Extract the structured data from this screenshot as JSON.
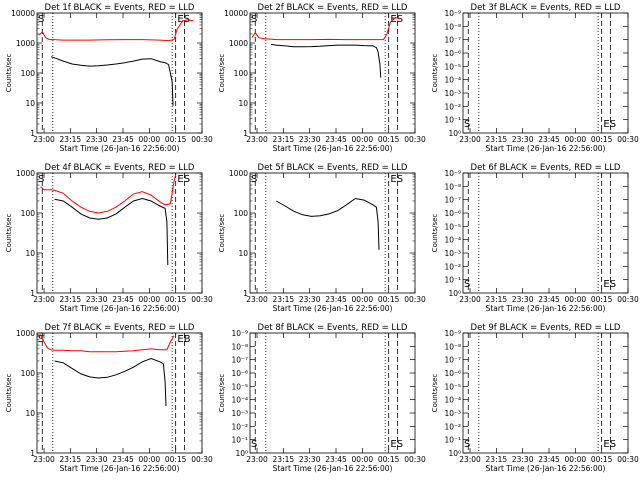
{
  "chart_data": [
    {
      "type": "line",
      "title": "Det 1f BLACK = Events, RED = LLD",
      "xlabel": "Start Time (26-Jan-16 22:56:00)",
      "ylabel": "Counts/sec",
      "xticks": [
        "23:00",
        "23:15",
        "23:30",
        "23:45",
        "00:00",
        "00:15",
        "00:30"
      ],
      "yscale": "log",
      "yticks": [
        "1",
        "10",
        "100",
        "1000",
        "10000"
      ],
      "ylim": [
        1,
        10000
      ],
      "markers": [
        "S",
        "ES"
      ],
      "series": [
        {
          "color": "#ff0000",
          "role": "LLD",
          "x": [
            1,
            3,
            5,
            7,
            10,
            15,
            20,
            30,
            40,
            50,
            60,
            70,
            75,
            78,
            80,
            83,
            86,
            89
          ],
          "y": [
            1800,
            2300,
            1500,
            1300,
            1300,
            1250,
            1250,
            1250,
            1280,
            1300,
            1300,
            1250,
            1200,
            1300,
            3000,
            5500,
            6000,
            5500
          ]
        },
        {
          "color": "#000000",
          "role": "Events",
          "x": [
            8,
            10,
            15,
            20,
            25,
            30,
            35,
            40,
            45,
            50,
            55,
            60,
            65,
            70,
            73,
            75,
            77,
            77.5
          ],
          "y": [
            350,
            320,
            250,
            200,
            180,
            170,
            175,
            185,
            200,
            220,
            250,
            290,
            300,
            240,
            220,
            190,
            50,
            8
          ]
        }
      ]
    },
    {
      "type": "line",
      "title": "Det 2f BLACK = Events, RED = LLD",
      "xlabel": "Start Time (26-Jan-16 22:56:00)",
      "ylabel": "Counts/sec",
      "xticks": [
        "23:00",
        "23:15",
        "23:30",
        "23:45",
        "00:00",
        "00:15",
        "00:30"
      ],
      "yscale": "log",
      "yticks": [
        "1",
        "10",
        "100",
        "1000",
        "10000"
      ],
      "ylim": [
        1,
        10000
      ],
      "markers": [
        "S",
        "ES"
      ],
      "series": [
        {
          "color": "#ff0000",
          "role": "LLD",
          "x": [
            1,
            3,
            5,
            8,
            15,
            25,
            35,
            45,
            55,
            65,
            72,
            76,
            78,
            80,
            83,
            85
          ],
          "y": [
            1500,
            2200,
            1500,
            1400,
            1300,
            1300,
            1300,
            1320,
            1300,
            1300,
            1300,
            1300,
            2000,
            5000,
            7000,
            6500
          ]
        },
        {
          "color": "#000000",
          "role": "Events",
          "x": [
            12,
            15,
            20,
            25,
            30,
            35,
            40,
            45,
            50,
            55,
            60,
            65,
            70,
            72,
            73,
            74,
            74.5
          ],
          "y": [
            900,
            850,
            800,
            750,
            750,
            760,
            780,
            820,
            850,
            850,
            850,
            820,
            800,
            700,
            500,
            200,
            70
          ]
        }
      ]
    },
    {
      "type": "line",
      "title": "Det 3f BLACK = Events, RED = LLD",
      "xlabel": "Start Time (26-Jan-16 22:56:00)",
      "ylabel": "Counts/sec",
      "xticks": [
        "23:00",
        "23:15",
        "23:30",
        "23:45",
        "00:00",
        "00:15",
        "00:30"
      ],
      "yscale": "log",
      "yticks": [
        "10⁰",
        "10⁻¹",
        "10⁻²",
        "10⁻³",
        "10⁻⁴",
        "10⁻⁵",
        "10⁻⁶",
        "10⁻⁷",
        "10⁻⁸",
        "10⁻⁹"
      ],
      "markers": [
        "S",
        "ES"
      ],
      "series": []
    },
    {
      "type": "line",
      "title": "Det 4f BLACK = Events, RED = LLD",
      "xlabel": "Start Time (26-Jan-16 22:56:00)",
      "ylabel": "Counts/sec",
      "xticks": [
        "23:00",
        "23:15",
        "23:30",
        "23:45",
        "00:00",
        "00:15",
        "00:30"
      ],
      "yscale": "log",
      "yticks": [
        "1",
        "10",
        "100",
        "1000"
      ],
      "ylim": [
        1,
        1000
      ],
      "markers": [
        "S",
        "ES"
      ],
      "series": [
        {
          "color": "#ff0000",
          "role": "LLD",
          "x": [
            2,
            4,
            6,
            8,
            10,
            15,
            20,
            25,
            30,
            35,
            40,
            45,
            50,
            55,
            60,
            65,
            70,
            73,
            76,
            78,
            79
          ],
          "y": [
            450,
            380,
            380,
            380,
            370,
            310,
            200,
            140,
            110,
            100,
            110,
            140,
            200,
            300,
            340,
            280,
            190,
            160,
            170,
            600,
            900
          ]
        },
        {
          "color": "#000000",
          "role": "Events",
          "x": [
            10,
            15,
            20,
            25,
            30,
            35,
            40,
            45,
            50,
            55,
            60,
            65,
            70,
            73,
            74,
            74.5
          ],
          "y": [
            220,
            200,
            140,
            95,
            75,
            70,
            75,
            95,
            140,
            200,
            230,
            200,
            150,
            130,
            60,
            5
          ]
        }
      ]
    },
    {
      "type": "line",
      "title": "Det 5f BLACK = Events, RED = LLD",
      "xlabel": "Start Time (26-Jan-16 22:56:00)",
      "ylabel": "Counts/sec",
      "xticks": [
        "23:00",
        "23:15",
        "23:30",
        "23:45",
        "00:00",
        "00:15",
        "00:30"
      ],
      "yscale": "log",
      "yticks": [
        "1",
        "10",
        "100",
        "1000"
      ],
      "ylim": [
        1,
        1000
      ],
      "markers": [
        "S",
        "ES"
      ],
      "series": [
        {
          "color": "#000000",
          "role": "Events",
          "x": [
            15,
            20,
            25,
            30,
            35,
            40,
            45,
            50,
            55,
            60,
            65,
            70,
            72,
            73,
            73.5
          ],
          "y": [
            200,
            150,
            110,
            90,
            82,
            85,
            95,
            115,
            160,
            230,
            210,
            160,
            140,
            60,
            12
          ]
        }
      ]
    },
    {
      "type": "line",
      "title": "Det 6f BLACK = Events, RED = LLD",
      "xlabel": "Start Time (26-Jan-16 22:56:00)",
      "ylabel": "Counts/sec",
      "xticks": [
        "23:00",
        "23:15",
        "23:30",
        "23:45",
        "00:00",
        "00:15",
        "00:30"
      ],
      "yscale": "log",
      "yticks": [
        "10⁰",
        "10⁻¹",
        "10⁻²",
        "10⁻³",
        "10⁻⁴",
        "10⁻⁵",
        "10⁻⁶",
        "10⁻⁷",
        "10⁻⁸",
        "10⁻⁹"
      ],
      "markers": [
        "S",
        "ES"
      ],
      "series": []
    },
    {
      "type": "line",
      "title": "Det 7f BLACK = Events, RED = LLD",
      "xlabel": "Start Time (26-Jan-16 22:56:00)",
      "ylabel": "Counts/sec",
      "xticks": [
        "23:00",
        "23:15",
        "23:30",
        "23:45",
        "00:00",
        "00:15",
        "00:30"
      ],
      "yscale": "log",
      "yticks": [
        "1",
        "10",
        "100",
        "1000"
      ],
      "ylim": [
        1,
        1000
      ],
      "markers": [
        "S",
        "EB"
      ],
      "series": [
        {
          "color": "#ff0000",
          "role": "LLD",
          "x": [
            0,
            2,
            4,
            6,
            8,
            10,
            15,
            20,
            25,
            30,
            35,
            40,
            45,
            50,
            55,
            60,
            65,
            70,
            74,
            76,
            78
          ],
          "y": [
            850,
            900,
            600,
            420,
            380,
            370,
            370,
            360,
            360,
            340,
            340,
            340,
            340,
            350,
            360,
            380,
            400,
            380,
            380,
            600,
            850
          ]
        },
        {
          "color": "#000000",
          "role": "Events",
          "x": [
            10,
            15,
            20,
            25,
            30,
            35,
            40,
            45,
            50,
            55,
            60,
            65,
            70,
            72,
            73,
            73.5
          ],
          "y": [
            200,
            180,
            130,
            95,
            80,
            75,
            78,
            90,
            110,
            140,
            190,
            230,
            190,
            170,
            60,
            15
          ]
        }
      ]
    },
    {
      "type": "line",
      "title": "Det 8f BLACK = Events, RED = LLD",
      "xlabel": "Start Time (26-Jan-16 22:56:00)",
      "ylabel": "Counts/sec",
      "xticks": [
        "23:00",
        "23:15",
        "23:30",
        "23:45",
        "00:00",
        "00:15",
        "00:30"
      ],
      "yscale": "log",
      "yticks": [
        "10⁰",
        "10⁻¹",
        "10⁻²",
        "10⁻³",
        "10⁻⁴",
        "10⁻⁵",
        "10⁻⁶",
        "10⁻⁷",
        "10⁻⁸",
        "10⁻⁹"
      ],
      "markers": [
        "S",
        "ES"
      ],
      "series": []
    },
    {
      "type": "line",
      "title": "Det 9f BLACK = Events, RED = LLD",
      "xlabel": "Start Time (26-Jan-16 22:56:00)",
      "ylabel": "Counts/sec",
      "xticks": [
        "23:00",
        "23:15",
        "23:30",
        "23:45",
        "00:00",
        "00:15",
        "00:30"
      ],
      "yscale": "log",
      "yticks": [
        "10⁰",
        "10⁻¹",
        "10⁻²",
        "10⁻³",
        "10⁻⁴",
        "10⁻⁵",
        "10⁻⁶",
        "10⁻⁷",
        "10⁻⁸",
        "10⁻⁹"
      ],
      "markers": [
        "S",
        "ES"
      ],
      "series": []
    }
  ]
}
